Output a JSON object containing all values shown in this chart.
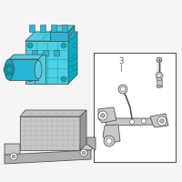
{
  "bg": "#f5f5f5",
  "white": "#ffffff",
  "outline": "#555555",
  "outline_thin": "#777777",
  "cyan1": "#29b6d4",
  "cyan2": "#4dd0e1",
  "cyan3": "#00acc1",
  "cyan4": "#0097a7",
  "gray1": "#c8c8c8",
  "gray2": "#b0b0b0",
  "gray3": "#989898",
  "gray4": "#808080",
  "label_3": "3"
}
